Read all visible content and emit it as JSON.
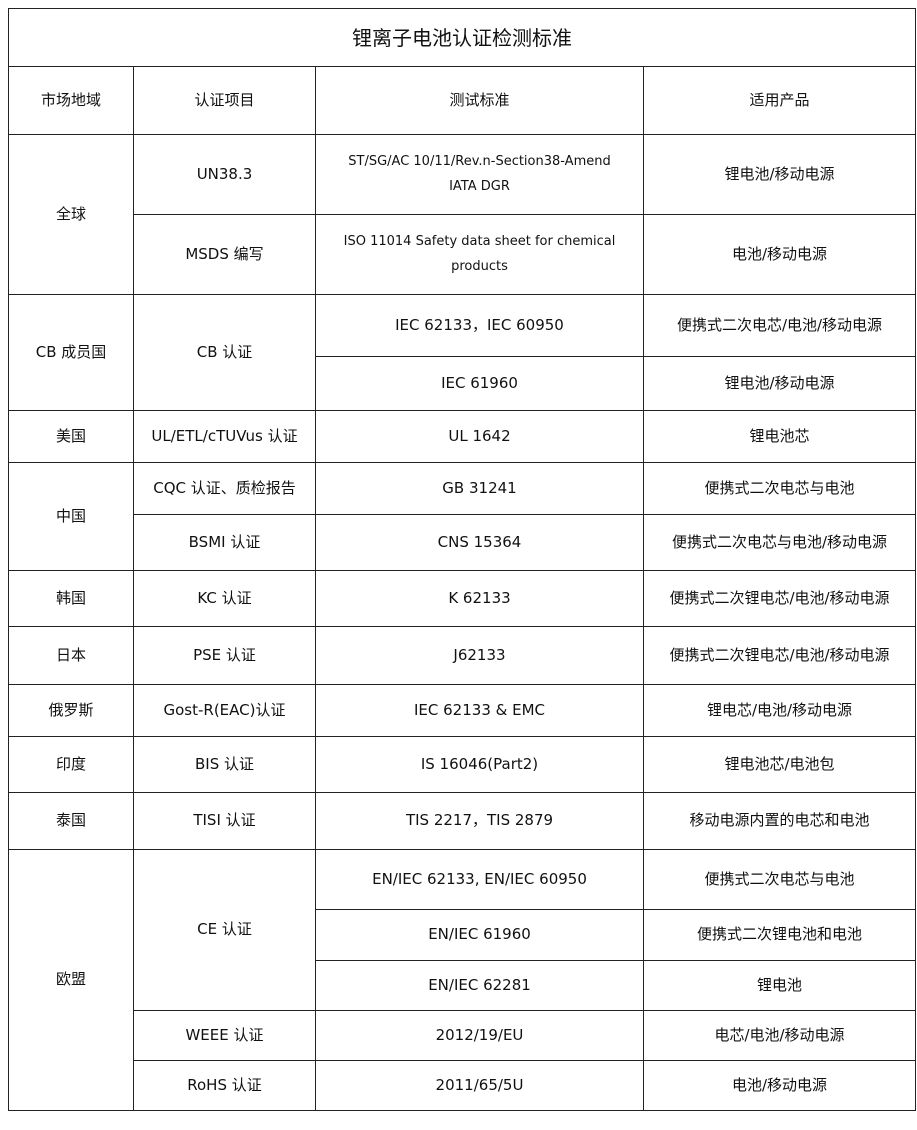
{
  "title": "锂离子电池认证检测标准",
  "headers": [
    "市场地域",
    "认证项目",
    "测试标准",
    "适用产品"
  ],
  "regions": [
    {
      "name": "全球",
      "certs": [
        {
          "name": "UN38.3",
          "standards": [
            {
              "standard": "ST/SG/AC 10/11/Rev.n-Section38-Amend\nIATA DGR",
              "product": "锂电池/移动电源"
            }
          ]
        },
        {
          "name": "MSDS 编写",
          "standards": [
            {
              "standard": "ISO 11014 Safety data sheet for chemical products",
              "product": "电池/移动电源"
            }
          ]
        }
      ]
    },
    {
      "name": "CB 成员国",
      "certs": [
        {
          "name": "CB 认证",
          "standards": [
            {
              "standard": "IEC 62133，IEC 60950",
              "product": "便携式二次电芯/电池/移动电源"
            },
            {
              "standard": "IEC 61960",
              "product": "锂电池/移动电源"
            }
          ]
        }
      ]
    },
    {
      "name": "美国",
      "certs": [
        {
          "name": "UL/ETL/cTUVus 认证",
          "standards": [
            {
              "standard": "UL 1642",
              "product": "锂电池芯"
            }
          ]
        }
      ]
    },
    {
      "name": "中国",
      "certs": [
        {
          "name": "CQC 认证、质检报告",
          "standards": [
            {
              "standard": "GB 31241",
              "product": "便携式二次电芯与电池"
            }
          ]
        },
        {
          "name": "BSMI 认证",
          "standards": [
            {
              "standard": "CNS 15364",
              "product": "便携式二次电芯与电池/移动电源"
            }
          ]
        }
      ]
    },
    {
      "name": "韩国",
      "certs": [
        {
          "name": "KC 认证",
          "standards": [
            {
              "standard": "K 62133",
              "product": "便携式二次锂电芯/电池/移动电源"
            }
          ]
        }
      ]
    },
    {
      "name": "日本",
      "certs": [
        {
          "name": "PSE 认证",
          "standards": [
            {
              "standard": "J62133",
              "product": "便携式二次锂电芯/电池/移动电源"
            }
          ]
        }
      ]
    },
    {
      "name": "俄罗斯",
      "certs": [
        {
          "name": "Gost-R(EAC)认证",
          "standards": [
            {
              "standard": "IEC 62133 & EMC",
              "product": "锂电芯/电池/移动电源"
            }
          ]
        }
      ]
    },
    {
      "name": "印度",
      "certs": [
        {
          "name": "BIS 认证",
          "standards": [
            {
              "standard": "IS 16046(Part2)",
              "product": "锂电池芯/电池包"
            }
          ]
        }
      ]
    },
    {
      "name": "泰国",
      "certs": [
        {
          "name": "TISI 认证",
          "standards": [
            {
              "standard": "TIS 2217，TIS 2879",
              "product": "移动电源内置的电芯和电池"
            }
          ]
        }
      ]
    },
    {
      "name": "欧盟",
      "certs": [
        {
          "name": "CE 认证",
          "standards": [
            {
              "standard": "EN/IEC 62133, EN/IEC 60950",
              "product": "便携式二次电芯与电池"
            },
            {
              "standard": "EN/IEC 61960",
              "product": "便携式二次锂电池和电池"
            },
            {
              "standard": "EN/IEC 62281",
              "product": "锂电池"
            }
          ]
        },
        {
          "name": "WEEE 认证",
          "standards": [
            {
              "standard": "2012/19/EU",
              "product": "电芯/电池/移动电源"
            }
          ]
        },
        {
          "name": "RoHS 认证",
          "standards": [
            {
              "standard": "2011/65/5U",
              "product": "电池/移动电源"
            }
          ]
        }
      ]
    }
  ]
}
